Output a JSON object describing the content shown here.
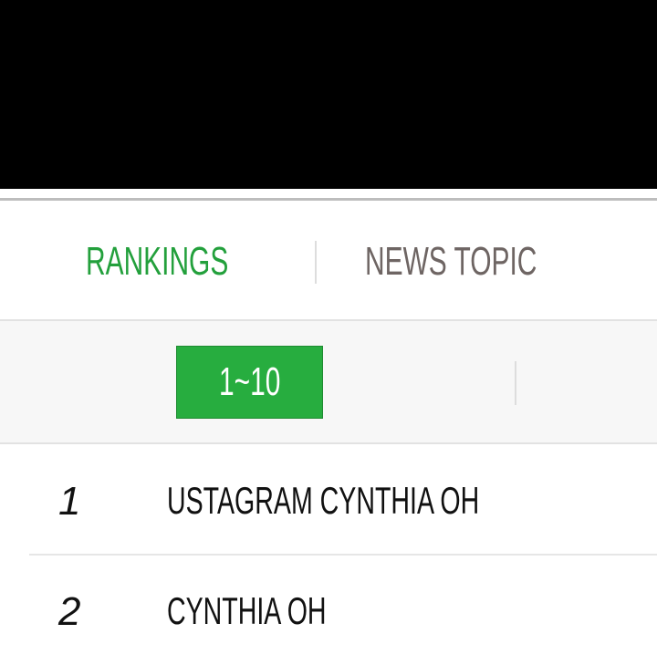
{
  "tabs": [
    {
      "label": "RANKINGS",
      "active": true
    },
    {
      "label": "NEWS TOPIC",
      "active": false
    }
  ],
  "page_range": "1~10",
  "rankings": [
    {
      "rank": "1",
      "name": "USTAGRAM CYNTHIA OH"
    },
    {
      "rank": "2",
      "name": "CYNTHIA OH"
    }
  ],
  "colors": {
    "accent": "#27ad3f",
    "inactive_tab": "#6e6563"
  }
}
